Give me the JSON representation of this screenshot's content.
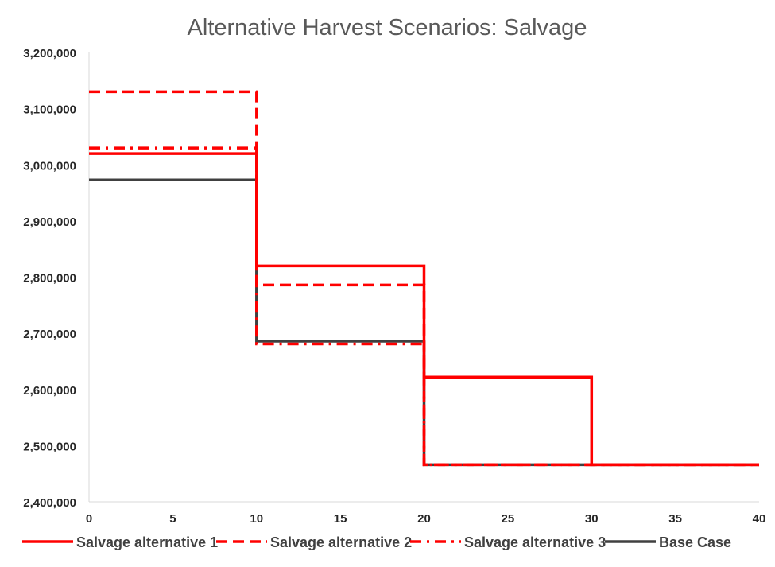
{
  "chart_data": {
    "type": "line",
    "step": true,
    "title": "Alternative Harvest Scenarios: Salvage",
    "xlabel": "",
    "ylabel": "",
    "xlim": [
      0,
      40
    ],
    "ylim": [
      2400000,
      3200000
    ],
    "x_ticks": [
      0,
      5,
      10,
      15,
      20,
      25,
      30,
      35,
      40
    ],
    "x_tick_labels": [
      "0",
      "5",
      "10",
      "15",
      "20",
      "25",
      "30",
      "35",
      "40"
    ],
    "y_ticks": [
      2400000,
      2500000,
      2600000,
      2700000,
      2800000,
      2900000,
      3000000,
      3100000,
      3200000
    ],
    "y_tick_labels": [
      "2,400,000",
      "2,500,000",
      "2,600,000",
      "2,700,000",
      "2,800,000",
      "2,900,000",
      "3,000,000",
      "3,100,000",
      "3,200,000"
    ],
    "grid": false,
    "legend_position": "bottom",
    "series": [
      {
        "name": "Salvage alternative 1",
        "color": "#ff0000",
        "dash": "solid",
        "points": [
          [
            0,
            3020000
          ],
          [
            10,
            3020000
          ],
          [
            10,
            2820000
          ],
          [
            20,
            2820000
          ],
          [
            20,
            2622000
          ],
          [
            30,
            2622000
          ],
          [
            30,
            2466000
          ],
          [
            40,
            2466000
          ]
        ]
      },
      {
        "name": "Salvage alternative 2",
        "color": "#ff0000",
        "dash": "dash",
        "points": [
          [
            0,
            3130000
          ],
          [
            10,
            3130000
          ],
          [
            10,
            2786000
          ],
          [
            20,
            2786000
          ],
          [
            20,
            2466000
          ],
          [
            40,
            2466000
          ]
        ]
      },
      {
        "name": "Salvage alternative 3",
        "color": "#ff0000",
        "dash": "dashdot",
        "points": [
          [
            0,
            3030000
          ],
          [
            10,
            3030000
          ],
          [
            10,
            2681000
          ],
          [
            20,
            2681000
          ],
          [
            20,
            2466000
          ],
          [
            40,
            2466000
          ]
        ]
      },
      {
        "name": "Base Case",
        "color": "#404040",
        "dash": "solid",
        "points": [
          [
            0,
            2973000
          ],
          [
            10,
            2973000
          ],
          [
            10,
            2686000
          ],
          [
            20,
            2686000
          ],
          [
            20,
            2466000
          ],
          [
            40,
            2466000
          ]
        ]
      }
    ]
  }
}
